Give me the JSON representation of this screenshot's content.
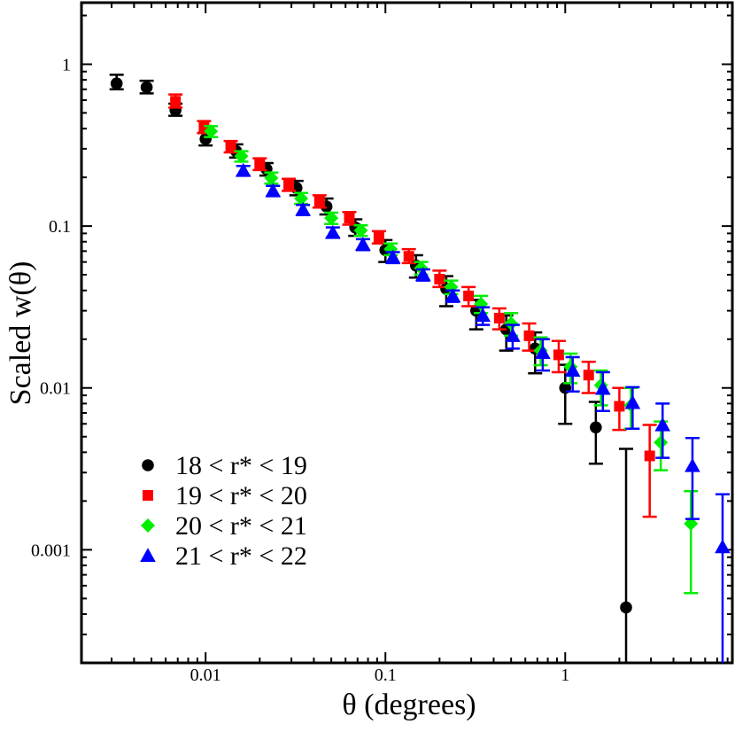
{
  "chart_data": {
    "type": "scatter",
    "title": "",
    "xlabel": "θ (degrees)",
    "ylabel": "Scaled w(θ)",
    "xscale": "log",
    "yscale": "log",
    "xlim": [
      0.00204,
      8.5
    ],
    "ylim": [
      0.0002,
      2.4
    ],
    "xticks": [
      {
        "value": 0.01,
        "label": "0.01"
      },
      {
        "value": 0.1,
        "label": "0.1"
      },
      {
        "value": 1,
        "label": "1"
      }
    ],
    "yticks": [
      {
        "value": 0.001,
        "label": "0.001"
      },
      {
        "value": 0.01,
        "label": "0.01"
      },
      {
        "value": 0.1,
        "label": "0.1"
      },
      {
        "value": 1,
        "label": "1"
      }
    ],
    "legend_position": "bottom-left",
    "series": [
      {
        "name": "18 < r* < 19",
        "color": "#000000",
        "marker": "circle",
        "points": [
          {
            "x": 0.0032,
            "y": 0.76,
            "lo": 0.7,
            "hi": 0.86
          },
          {
            "x": 0.0047,
            "y": 0.72,
            "lo": 0.66,
            "hi": 0.79
          },
          {
            "x": 0.0068,
            "y": 0.52,
            "lo": 0.48,
            "hi": 0.57
          },
          {
            "x": 0.01,
            "y": 0.345,
            "lo": 0.315,
            "hi": 0.38
          },
          {
            "x": 0.0148,
            "y": 0.29,
            "lo": 0.265,
            "hi": 0.32
          },
          {
            "x": 0.0218,
            "y": 0.225,
            "lo": 0.205,
            "hi": 0.245
          },
          {
            "x": 0.032,
            "y": 0.172,
            "lo": 0.155,
            "hi": 0.19
          },
          {
            "x": 0.047,
            "y": 0.132,
            "lo": 0.118,
            "hi": 0.148
          },
          {
            "x": 0.068,
            "y": 0.098,
            "lo": 0.087,
            "hi": 0.11
          },
          {
            "x": 0.1,
            "y": 0.071,
            "lo": 0.06,
            "hi": 0.082
          },
          {
            "x": 0.148,
            "y": 0.057,
            "lo": 0.048,
            "hi": 0.066
          },
          {
            "x": 0.218,
            "y": 0.041,
            "lo": 0.032,
            "hi": 0.049
          },
          {
            "x": 0.32,
            "y": 0.03,
            "lo": 0.023,
            "hi": 0.035
          },
          {
            "x": 0.47,
            "y": 0.023,
            "lo": 0.017,
            "hi": 0.028
          },
          {
            "x": 0.68,
            "y": 0.0175,
            "lo": 0.0123,
            "hi": 0.022
          },
          {
            "x": 1.0,
            "y": 0.01,
            "lo": 0.006,
            "hi": 0.0139
          },
          {
            "x": 1.48,
            "y": 0.0057,
            "lo": 0.0034,
            "hi": 0.0082
          },
          {
            "x": 2.18,
            "y": 0.00044,
            "lo": 0.0001,
            "hi": 0.0042
          }
        ]
      },
      {
        "name": "19 < r* < 20",
        "color": "#ff0000",
        "marker": "square",
        "points": [
          {
            "x": 0.0068,
            "y": 0.59,
            "lo": 0.54,
            "hi": 0.65
          },
          {
            "x": 0.0098,
            "y": 0.41,
            "lo": 0.375,
            "hi": 0.445
          },
          {
            "x": 0.0138,
            "y": 0.31,
            "lo": 0.285,
            "hi": 0.335
          },
          {
            "x": 0.02,
            "y": 0.242,
            "lo": 0.222,
            "hi": 0.262
          },
          {
            "x": 0.029,
            "y": 0.18,
            "lo": 0.165,
            "hi": 0.196
          },
          {
            "x": 0.043,
            "y": 0.142,
            "lo": 0.13,
            "hi": 0.155
          },
          {
            "x": 0.063,
            "y": 0.112,
            "lo": 0.102,
            "hi": 0.122
          },
          {
            "x": 0.092,
            "y": 0.085,
            "lo": 0.078,
            "hi": 0.093
          },
          {
            "x": 0.135,
            "y": 0.065,
            "lo": 0.059,
            "hi": 0.072
          },
          {
            "x": 0.2,
            "y": 0.047,
            "lo": 0.042,
            "hi": 0.053
          },
          {
            "x": 0.29,
            "y": 0.037,
            "lo": 0.032,
            "hi": 0.042
          },
          {
            "x": 0.43,
            "y": 0.027,
            "lo": 0.023,
            "hi": 0.031
          },
          {
            "x": 0.63,
            "y": 0.021,
            "lo": 0.017,
            "hi": 0.025
          },
          {
            "x": 0.92,
            "y": 0.016,
            "lo": 0.0125,
            "hi": 0.0195
          },
          {
            "x": 1.35,
            "y": 0.012,
            "lo": 0.0093,
            "hi": 0.0145
          },
          {
            "x": 2.0,
            "y": 0.0077,
            "lo": 0.0055,
            "hi": 0.01
          },
          {
            "x": 2.95,
            "y": 0.0038,
            "lo": 0.0016,
            "hi": 0.0059
          }
        ]
      },
      {
        "name": "20 < r* < 21",
        "color": "#00ee00",
        "marker": "diamond",
        "points": [
          {
            "x": 0.0107,
            "y": 0.385,
            "lo": 0.355,
            "hi": 0.415
          },
          {
            "x": 0.0158,
            "y": 0.27,
            "lo": 0.25,
            "hi": 0.29
          },
          {
            "x": 0.0232,
            "y": 0.198,
            "lo": 0.183,
            "hi": 0.214
          },
          {
            "x": 0.034,
            "y": 0.148,
            "lo": 0.137,
            "hi": 0.16
          },
          {
            "x": 0.05,
            "y": 0.112,
            "lo": 0.103,
            "hi": 0.121
          },
          {
            "x": 0.073,
            "y": 0.094,
            "lo": 0.087,
            "hi": 0.101
          },
          {
            "x": 0.107,
            "y": 0.072,
            "lo": 0.066,
            "hi": 0.078
          },
          {
            "x": 0.158,
            "y": 0.055,
            "lo": 0.05,
            "hi": 0.06
          },
          {
            "x": 0.232,
            "y": 0.042,
            "lo": 0.038,
            "hi": 0.046
          },
          {
            "x": 0.34,
            "y": 0.033,
            "lo": 0.029,
            "hi": 0.037
          },
          {
            "x": 0.5,
            "y": 0.025,
            "lo": 0.021,
            "hi": 0.029
          },
          {
            "x": 0.73,
            "y": 0.017,
            "lo": 0.0138,
            "hi": 0.0205
          },
          {
            "x": 1.07,
            "y": 0.0135,
            "lo": 0.0107,
            "hi": 0.0163
          },
          {
            "x": 1.58,
            "y": 0.0104,
            "lo": 0.0078,
            "hi": 0.0128
          },
          {
            "x": 2.32,
            "y": 0.0078,
            "lo": 0.0056,
            "hi": 0.01
          },
          {
            "x": 3.4,
            "y": 0.0046,
            "lo": 0.0031,
            "hi": 0.0062
          },
          {
            "x": 5.0,
            "y": 0.00145,
            "lo": 0.00054,
            "hi": 0.0023
          }
        ]
      },
      {
        "name": "21 < r* < 22",
        "color": "#0000ff",
        "marker": "triangle",
        "points": [
          {
            "x": 0.0162,
            "y": 0.22,
            "lo": 0.205,
            "hi": 0.235
          },
          {
            "x": 0.0237,
            "y": 0.165,
            "lo": 0.153,
            "hi": 0.177
          },
          {
            "x": 0.0348,
            "y": 0.126,
            "lo": 0.117,
            "hi": 0.135
          },
          {
            "x": 0.051,
            "y": 0.091,
            "lo": 0.085,
            "hi": 0.098
          },
          {
            "x": 0.075,
            "y": 0.077,
            "lo": 0.071,
            "hi": 0.083
          },
          {
            "x": 0.11,
            "y": 0.064,
            "lo": 0.059,
            "hi": 0.069
          },
          {
            "x": 0.162,
            "y": 0.05,
            "lo": 0.046,
            "hi": 0.054
          },
          {
            "x": 0.237,
            "y": 0.037,
            "lo": 0.034,
            "hi": 0.04
          },
          {
            "x": 0.348,
            "y": 0.028,
            "lo": 0.0245,
            "hi": 0.0315
          },
          {
            "x": 0.51,
            "y": 0.021,
            "lo": 0.0175,
            "hi": 0.0245
          },
          {
            "x": 0.75,
            "y": 0.0165,
            "lo": 0.0128,
            "hi": 0.02
          },
          {
            "x": 1.1,
            "y": 0.0128,
            "lo": 0.0095,
            "hi": 0.0155
          },
          {
            "x": 1.62,
            "y": 0.0099,
            "lo": 0.0072,
            "hi": 0.0125
          },
          {
            "x": 2.37,
            "y": 0.0081,
            "lo": 0.0056,
            "hi": 0.0101
          },
          {
            "x": 3.48,
            "y": 0.0059,
            "lo": 0.0037,
            "hi": 0.008
          },
          {
            "x": 5.1,
            "y": 0.0033,
            "lo": 0.00155,
            "hi": 0.0049
          },
          {
            "x": 7.5,
            "y": 0.00104,
            "lo": 0.0001,
            "hi": 0.0022
          }
        ]
      }
    ]
  }
}
